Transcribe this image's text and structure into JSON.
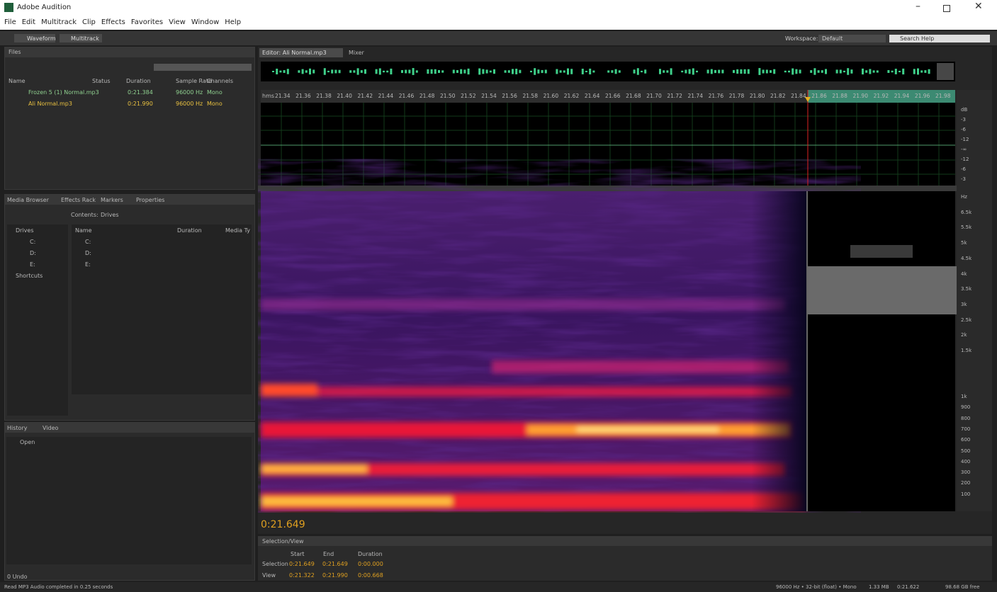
{
  "app": {
    "title": "Adobe Audition"
  },
  "menu": [
    "File",
    "Edit",
    "Multitrack",
    "Clip",
    "Effects",
    "Favorites",
    "View",
    "Window",
    "Help"
  ],
  "toolbar": {
    "waveform": "Waveform",
    "multitrack": "Multitrack",
    "workspace_label": "Workspace:",
    "workspace": "Default",
    "search": "Search Help"
  },
  "files_panel": {
    "tab": "Files",
    "columns": [
      "Name",
      "Status",
      "Duration",
      "Sample Rate",
      "Channels"
    ],
    "rows": [
      [
        "Frozen 5 (1) Normal.mp3",
        "0:21.384",
        "96000 Hz",
        "Mono"
      ],
      [
        "Ali Normal.mp3",
        "0:21.990",
        "96000 Hz",
        "Mono"
      ]
    ]
  },
  "media_browser": {
    "tabs": [
      "Media Browser",
      "Effects Rack",
      "Markers",
      "Properties"
    ],
    "contents_label": "Contents:",
    "contents": "Drives",
    "tree": [
      "Drives",
      "C:",
      "D:",
      "E:",
      "Shortcuts"
    ],
    "columns": [
      "Name",
      "Duration",
      "Media Ty"
    ],
    "items": [
      "C:",
      "D:",
      "E:"
    ]
  },
  "history": {
    "tabs": [
      "History",
      "Video"
    ],
    "items": [
      "Open"
    ],
    "undo": "0 Undo"
  },
  "editor": {
    "tab": "Editor: Ali Normal.mp3",
    "mixer": "Mixer",
    "ruler_unit": "hms",
    "ruler": [
      "21.34",
      "21.36",
      "21.38",
      "21.40",
      "21.42",
      "21.44",
      "21.46",
      "21.48",
      "21.50",
      "21.52",
      "21.54",
      "21.56",
      "21.58",
      "21.60",
      "21.62",
      "21.64",
      "21.66",
      "21.68",
      "21.70",
      "21.72",
      "21.74",
      "21.76",
      "21.78",
      "21.80",
      "21.82",
      "21.84",
      "21.86",
      "21.88",
      "21.90",
      "21.92",
      "21.94",
      "21.96",
      "21.98"
    ],
    "db_scale": [
      "dB",
      "-3",
      "-6",
      "-12",
      "-∞",
      "-12",
      "-6",
      "-3"
    ],
    "hz_scale": [
      "Hz",
      "6.5k",
      "5.5k",
      "5k",
      "4.5k",
      "4k",
      "3.5k",
      "3k",
      "2.5k",
      "2k",
      "1.5k",
      "1k",
      "900",
      "800",
      "700",
      "600",
      "500",
      "400",
      "300",
      "200",
      "100"
    ],
    "time": "0:21.649"
  },
  "selection_view": {
    "title": "Selection/View",
    "headers": [
      "Start",
      "End",
      "Duration"
    ],
    "rows": [
      [
        "Selection",
        "0:21.649",
        "0:21.649",
        "0:00.000"
      ],
      [
        "View",
        "0:21.322",
        "0:21.990",
        "0:00.668"
      ]
    ]
  },
  "status": {
    "left": "Read MP3 Audio completed in 0.25 seconds",
    "right": [
      "96000 Hz • 32-bit (float) • Mono",
      "1.33 MB",
      "0:21.622",
      "98.68 GB free"
    ]
  }
}
